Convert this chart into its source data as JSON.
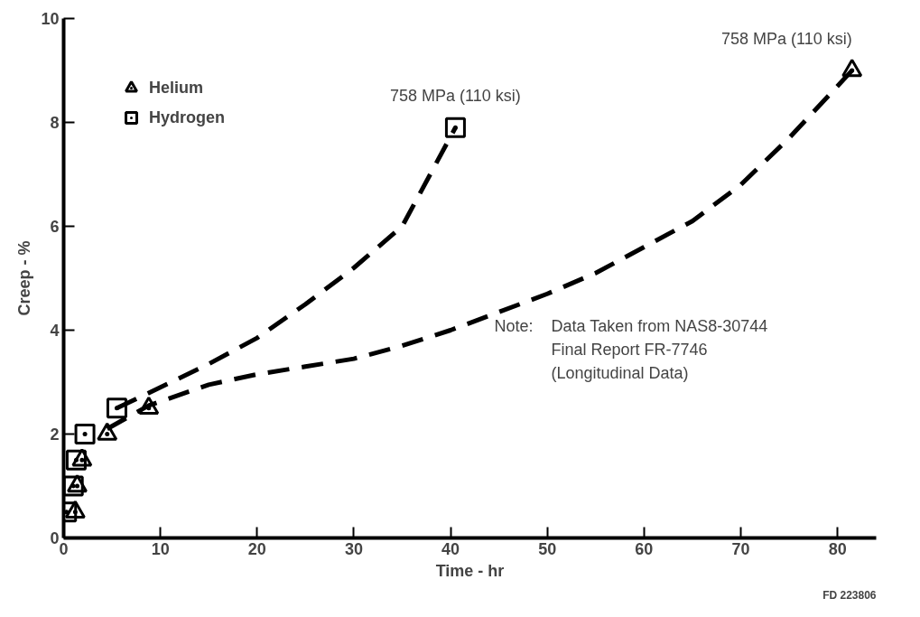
{
  "chart_data": {
    "type": "scatter",
    "xlabel": "Time - hr",
    "ylabel": "Creep - %",
    "xlim": [
      0,
      84
    ],
    "ylim": [
      0,
      10
    ],
    "xticks": [
      0,
      10,
      20,
      30,
      40,
      50,
      60,
      70,
      80
    ],
    "yticks": [
      0,
      2,
      4,
      6,
      8,
      10
    ],
    "grid": false,
    "legend": "top left",
    "series": [
      {
        "name": "Helium",
        "marker": "triangle",
        "color": "#000000",
        "x": [
          1.2,
          1.4,
          1.9,
          4.5,
          8.8,
          81.5
        ],
        "values": [
          0.5,
          1.0,
          1.5,
          2.0,
          2.5,
          9.0
        ]
      },
      {
        "name": "Hydrogen",
        "marker": "square",
        "color": "#000000",
        "x": [
          0.3,
          1.0,
          1.3,
          2.2,
          5.5,
          40.5
        ],
        "values": [
          0.5,
          1.0,
          1.5,
          2.0,
          2.5,
          7.9
        ]
      },
      {
        "type": "line",
        "line_style": "dashed",
        "color": "#000000",
        "x": [
          4.5,
          8.8,
          15,
          20,
          25,
          30,
          35,
          40,
          45,
          50,
          55,
          60,
          65,
          70,
          75,
          81.5
        ],
        "values": [
          2.1,
          2.55,
          2.95,
          3.15,
          3.3,
          3.45,
          3.7,
          4.0,
          4.35,
          4.7,
          5.1,
          5.6,
          6.1,
          6.8,
          7.7,
          9.0
        ]
      },
      {
        "type": "line",
        "line_style": "dashed",
        "color": "#000000",
        "x": [
          5.5,
          10,
          15,
          20,
          25,
          30,
          35,
          40.5
        ],
        "values": [
          2.5,
          2.9,
          3.35,
          3.85,
          4.5,
          5.2,
          6.0,
          7.9
        ]
      }
    ],
    "annotations": [
      {
        "text": "758 MPa (110 ksi)",
        "x": 40.5,
        "y": 7.9
      },
      {
        "text": "758 MPa (110 ksi)",
        "x": 81.5,
        "y": 9.0
      },
      "Note:",
      "Data Taken from NAS8-30744",
      "Final Report FR-7746",
      "(Longitudinal Data)",
      "FD 223806"
    ]
  }
}
